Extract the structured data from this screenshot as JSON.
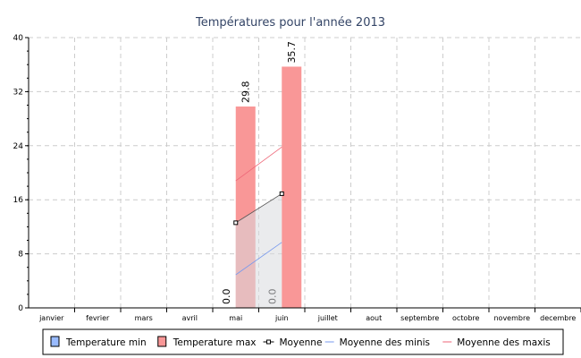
{
  "chart_data": {
    "type": "bar",
    "title": "Températures pour l'année 2013",
    "categories": [
      "janvier",
      "fevrier",
      "mars",
      "avril",
      "mai",
      "juin",
      "juillet",
      "aout",
      "septembre",
      "octobre",
      "novembre",
      "decembre"
    ],
    "ylim": [
      0,
      40
    ],
    "yticks": [
      "0",
      "8",
      "16",
      "24",
      "32",
      "40"
    ],
    "grid": true,
    "legend_position": "bottom",
    "series": [
      {
        "name": "Temperature min",
        "type": "bar",
        "color": "#99bbff",
        "values": [
          null,
          null,
          null,
          null,
          0.0,
          0.0,
          null,
          null,
          null,
          null,
          null,
          null
        ],
        "labels": [
          "",
          "",
          "",
          "",
          "0.0",
          "0.0",
          "",
          "",
          "",
          "",
          "",
          ""
        ]
      },
      {
        "name": "Temperature max",
        "type": "bar",
        "color": "#f99797",
        "values": [
          null,
          null,
          null,
          null,
          29.8,
          35.7,
          null,
          null,
          null,
          null,
          null,
          null
        ],
        "labels": [
          "",
          "",
          "",
          "",
          "29.8",
          "35.7",
          "",
          "",
          "",
          "",
          "",
          ""
        ]
      },
      {
        "name": "Moyenne",
        "type": "area-line",
        "color": "#555555",
        "values": [
          null,
          null,
          null,
          null,
          12.6,
          16.9,
          null,
          null,
          null,
          null,
          null,
          null
        ]
      },
      {
        "name": "Moyenne des minis",
        "type": "line",
        "color": "#7799ee",
        "values": [
          null,
          null,
          null,
          null,
          4.9,
          9.7,
          null,
          null,
          null,
          null,
          null,
          null
        ]
      },
      {
        "name": "Moyenne des maxis",
        "type": "line",
        "color": "#ee6677",
        "values": [
          null,
          null,
          null,
          null,
          18.8,
          23.8,
          null,
          null,
          null,
          null,
          null,
          null
        ]
      }
    ]
  }
}
